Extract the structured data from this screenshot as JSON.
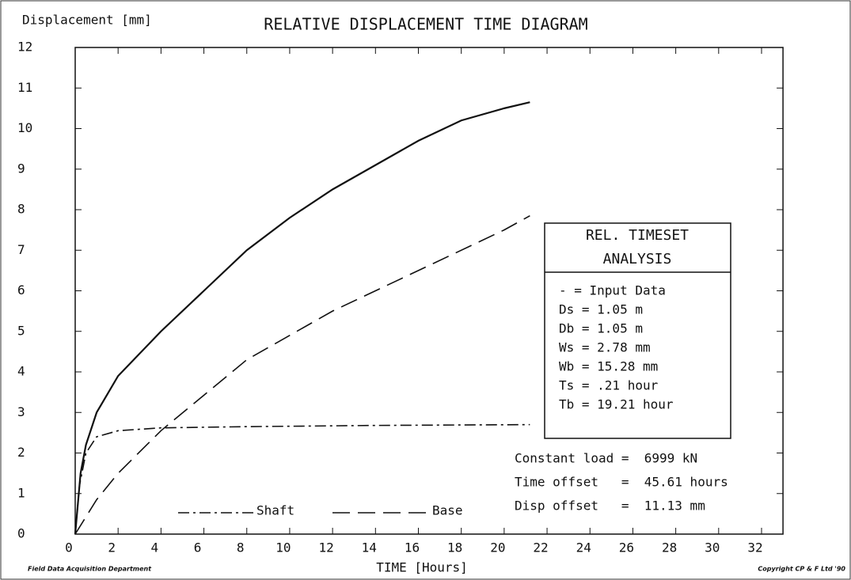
{
  "chart_data": {
    "type": "line",
    "title": "RELATIVE DISPLACEMENT TIME DIAGRAM",
    "y_label": "Displacement [mm]",
    "x_label": "TIME [Hours]",
    "footer_left": "Field Data Acquisition Department",
    "footer_right": "Copyright CP & F Ltd '90",
    "xlim": [
      0,
      33
    ],
    "ylim": [
      0,
      12
    ],
    "xticks": [
      0,
      2,
      4,
      6,
      8,
      10,
      12,
      14,
      16,
      18,
      20,
      22,
      24,
      26,
      28,
      30,
      32
    ],
    "yticks": [
      0,
      1,
      2,
      3,
      4,
      5,
      6,
      7,
      8,
      9,
      10,
      11,
      12
    ],
    "grid": false,
    "series": [
      {
        "color": "#111",
        "dash": "solid",
        "x": [
          0,
          0.25,
          0.5,
          1,
          2,
          4,
          6,
          8,
          10,
          12,
          14,
          16,
          18,
          20,
          21.2
        ],
        "values": [
          0,
          1.5,
          2.2,
          3.0,
          3.9,
          5.0,
          6.0,
          7.0,
          7.8,
          8.5,
          9.1,
          9.7,
          10.2,
          10.5,
          10.65
        ]
      },
      {
        "name": "Shaft",
        "color": "#111",
        "dash": "dashdot",
        "x": [
          0,
          0.2,
          0.5,
          1,
          2,
          4,
          8,
          14,
          21.2
        ],
        "values": [
          0,
          1.2,
          2.0,
          2.4,
          2.55,
          2.62,
          2.65,
          2.68,
          2.7
        ]
      },
      {
        "name": "Base",
        "color": "#111",
        "dash": "longdash",
        "x": [
          0,
          1,
          2,
          4,
          8,
          12,
          16,
          20,
          21.2
        ],
        "values": [
          0,
          0.85,
          1.5,
          2.55,
          4.3,
          5.5,
          6.5,
          7.5,
          7.85
        ]
      }
    ],
    "info_box": {
      "title": [
        "REL. TIMESET",
        "ANALYSIS"
      ],
      "lines": [
        "- = Input Data",
        "Ds = 1.05 m",
        "Db = 1.05 m",
        "Ws = 2.78 mm",
        "Wb = 15.28 mm",
        "Ts = .21 hour",
        "Tb = 19.21 hour"
      ]
    },
    "notes": [
      "Constant load =  6999 kN",
      "Time offset   =  45.61 hours",
      "Disp offset   =  11.13 mm"
    ]
  }
}
